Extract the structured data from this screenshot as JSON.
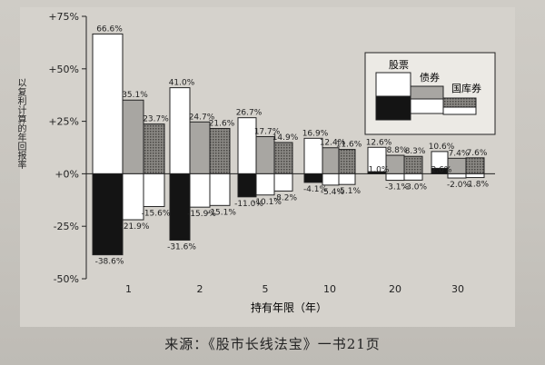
{
  "caption": "来源：《股市长线法宝》一书21页",
  "chart_data": {
    "type": "bar",
    "title": "",
    "xlabel": "持有年限（年）",
    "ylabel": "以复利计算的年回报率",
    "ylim": [
      -50,
      75
    ],
    "yticks": [
      "-50%",
      "-25%",
      "+0%",
      "+25%",
      "+50%",
      "+75%"
    ],
    "ytick_values": [
      -50,
      -25,
      0,
      25,
      50,
      75
    ],
    "categories": [
      "1",
      "2",
      "5",
      "10",
      "20",
      "30"
    ],
    "series": [
      {
        "name": "股票",
        "max": [
          66.6,
          41.0,
          26.7,
          16.9,
          12.6,
          10.6
        ],
        "min": [
          -38.6,
          -31.6,
          -11.0,
          -4.1,
          1.0,
          2.6
        ],
        "max_labels": [
          "66.6%",
          "41.0%",
          "26.7%",
          "16.9%",
          "12.6%",
          "10.6%"
        ],
        "min_labels": [
          "-38.6%",
          "-31.6%",
          "-11.0%",
          "-4.1%",
          "1.0%",
          "2.6%"
        ]
      },
      {
        "name": "债券",
        "max": [
          35.1,
          24.7,
          17.7,
          12.4,
          8.8,
          7.4
        ],
        "min": [
          -21.9,
          -15.9,
          -10.1,
          -5.4,
          -3.1,
          -2.0
        ],
        "max_labels": [
          "35.1%",
          "24.7%",
          "17.7%",
          "12.4%",
          "8.8%",
          "7.4%"
        ],
        "min_labels": [
          "-21.9%",
          "-15.9%",
          "-10.1%",
          "-5.4%",
          "-3.1%",
          "-2.0%"
        ]
      },
      {
        "name": "国库券",
        "max": [
          23.7,
          21.6,
          14.9,
          11.6,
          8.3,
          7.6
        ],
        "min": [
          -15.6,
          -15.1,
          -8.2,
          -5.1,
          -3.0,
          -1.8
        ],
        "max_labels": [
          "23.7%",
          "21.6%",
          "14.9%",
          "11.6%",
          "8.3%",
          "7.6%"
        ],
        "min_labels": [
          "-15.6%",
          "-15.1%",
          "-8.2%",
          "-5.1%",
          "-3.0%",
          "-1.8%"
        ]
      }
    ],
    "colors": {
      "stocks_max": "#ffffff",
      "stocks_min": "#141414",
      "bonds_max": "#a8a6a2",
      "bonds_min": "#ffffff",
      "tbills_max": "pattern",
      "tbills_min": "#ffffff"
    },
    "grid": false,
    "legend_position": "top-right"
  }
}
